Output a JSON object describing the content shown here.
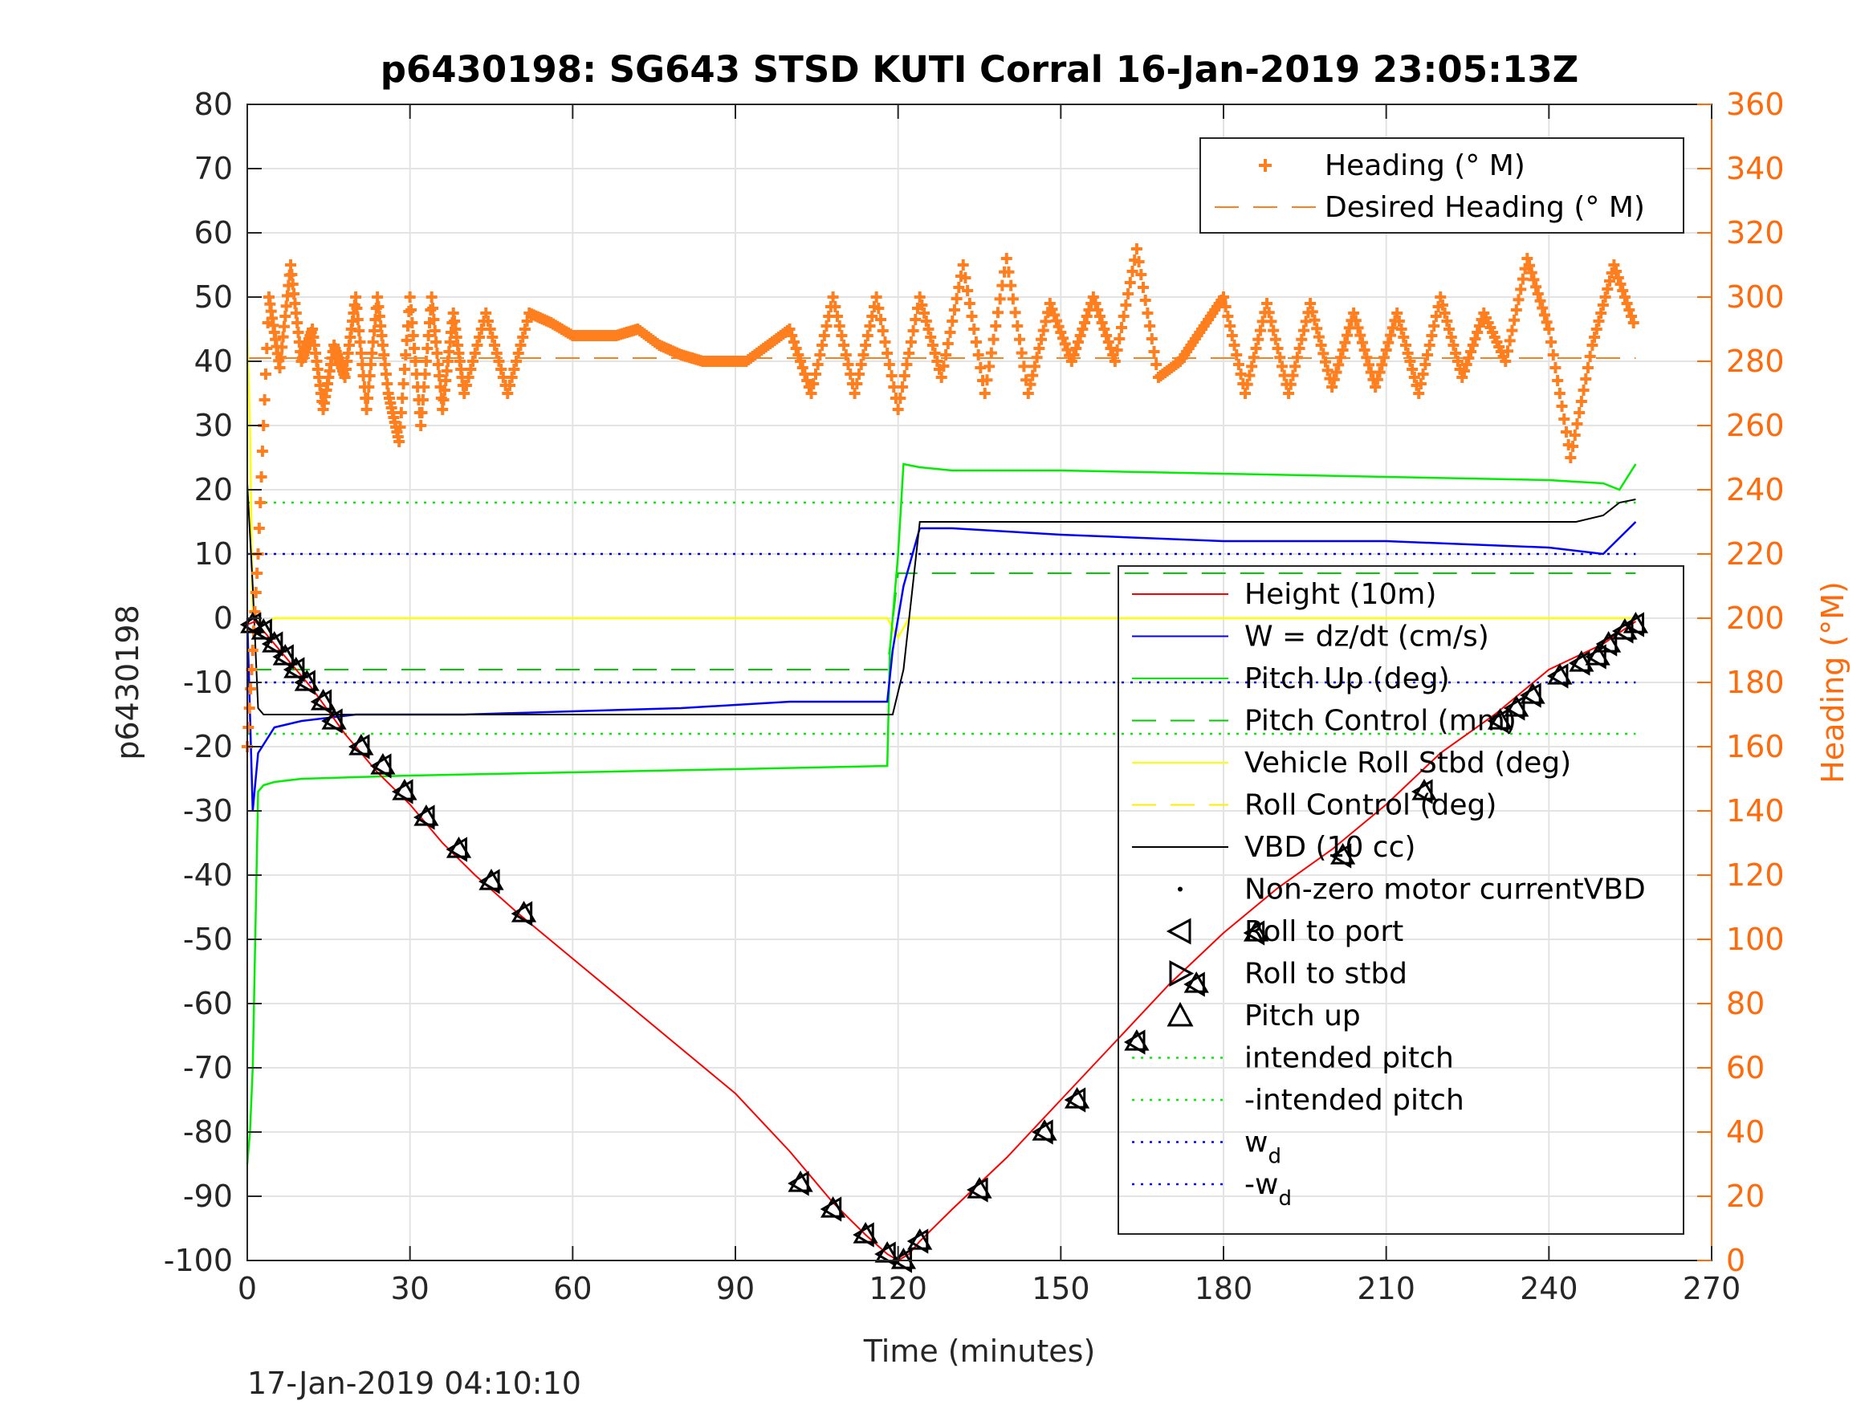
{
  "chart_data": {
    "type": "line",
    "title": "p6430198: SG643 STSD KUTI Corral 16-Jan-2019 23:05:13Z",
    "xlabel": "Time (minutes)",
    "ylabel": "p6430198",
    "y2label": "Heading (°M)",
    "footer": "17-Jan-2019 04:10:10",
    "xlim": [
      0,
      270
    ],
    "ylim": [
      -100,
      80
    ],
    "y2lim": [
      0,
      360
    ],
    "xticks": [
      0,
      30,
      60,
      90,
      120,
      150,
      180,
      210,
      240,
      270
    ],
    "yticks": [
      80,
      70,
      60,
      50,
      40,
      30,
      20,
      10,
      0,
      -10,
      -20,
      -30,
      -40,
      -50,
      -60,
      -70,
      -80,
      -90,
      -100
    ],
    "y2ticks": [
      360,
      340,
      320,
      300,
      280,
      260,
      240,
      220,
      200,
      180,
      160,
      140,
      120,
      100,
      80,
      60,
      40,
      20,
      0
    ],
    "grid": true,
    "legend_heading": {
      "placement": "top-right",
      "entries": [
        "Heading (° M)",
        "Desired Heading (° M)"
      ]
    },
    "legend_main": {
      "placement": "right",
      "entries": [
        "Height (10m)",
        "W = dz/dt (cm/s)",
        "Pitch Up (deg)",
        "Pitch Control (mm)",
        "Vehicle Roll Stbd (deg)",
        "Roll Control (deg)",
        "VBD (10 cc)",
        "Non-zero motor currentVBD",
        "Roll to port",
        "Roll to stbd",
        "Pitch up",
        "intended pitch",
        "-intended pitch",
        "w",
        "-w"
      ],
      "subscript": "d"
    },
    "colors": {
      "height": "#ff0000",
      "w": "#0000ff",
      "pitch": "#00ee00",
      "pitch_control": "#00cc00",
      "roll": "#ffff00",
      "roll_control": "#ffee00",
      "vbd": "#000000",
      "heading": "#ff7f1e",
      "axis_right": "#ff6a0a"
    },
    "series": [
      {
        "name": "Height (10m)",
        "x": [
          0,
          1.5,
          6,
          12,
          18,
          24,
          30,
          36,
          42,
          50,
          60,
          70,
          80,
          90,
          100,
          108,
          114,
          118,
          120,
          122,
          124,
          130,
          140,
          150,
          160,
          170,
          180,
          190,
          200,
          210,
          220,
          230,
          240,
          250,
          256
        ],
        "y": [
          -1,
          -0.5,
          -5,
          -11,
          -18,
          -24,
          -29,
          -35,
          -40,
          -46,
          -53,
          -60,
          -67,
          -74,
          -83,
          -91,
          -96,
          -99,
          -100,
          -99,
          -97,
          -92,
          -84,
          -75,
          -66,
          -57,
          -49,
          -42,
          -36,
          -29,
          -21,
          -15,
          -8,
          -4,
          -0.5
        ]
      },
      {
        "name": "VBD (10 cc)",
        "x": [
          0,
          1,
          2,
          3,
          119,
          121,
          124,
          130,
          150,
          180,
          210,
          245,
          250,
          253,
          256
        ],
        "y": [
          21,
          5,
          -14,
          -15,
          -15,
          -8,
          15,
          15,
          15,
          15,
          15,
          15,
          16,
          18,
          18.5
        ]
      },
      {
        "name": "W = dz/dt (cm/s)",
        "x": [
          0,
          1,
          2,
          5,
          10,
          20,
          40,
          60,
          80,
          100,
          110,
          118,
          119,
          121,
          124,
          130,
          150,
          180,
          210,
          240,
          250,
          256
        ],
        "y": [
          0,
          -30,
          -21,
          -17,
          -16,
          -15,
          -15,
          -14.5,
          -14,
          -13,
          -13,
          -13,
          -5,
          5,
          14,
          14,
          13,
          12,
          12,
          11,
          10,
          15
        ]
      },
      {
        "name": "Pitch Up (deg)",
        "x": [
          0,
          0.5,
          1,
          2,
          3,
          5,
          10,
          30,
          60,
          90,
          118,
          118.5,
          120,
          121,
          124,
          130,
          150,
          180,
          210,
          240,
          250,
          253,
          256
        ],
        "y": [
          -85,
          -80,
          -70,
          -27,
          -26,
          -25.5,
          -25,
          -24.5,
          -24,
          -23.5,
          -23,
          -5,
          10,
          24,
          23.5,
          23,
          23,
          22.5,
          22,
          21.5,
          21,
          20,
          24
        ]
      },
      {
        "name": "Vehicle Roll Stbd (deg)",
        "x": [
          0,
          0.5,
          1,
          3,
          5,
          10,
          20,
          40,
          60,
          80,
          100,
          118,
          120,
          122,
          130,
          150,
          180,
          210,
          240,
          256
        ],
        "y": [
          45,
          30,
          0,
          -1,
          0,
          0,
          0,
          0,
          0,
          0,
          0,
          0,
          -3,
          0,
          0,
          0,
          0,
          0,
          0,
          0
        ]
      },
      {
        "name": "Heading (° M)",
        "axis": "right",
        "x": [
          0,
          2,
          4,
          6,
          8,
          10,
          12,
          14,
          16,
          18,
          20,
          22,
          24,
          26,
          28,
          30,
          32,
          34,
          36,
          38,
          40,
          44,
          48,
          52,
          56,
          60,
          64,
          68,
          72,
          76,
          80,
          84,
          88,
          92,
          96,
          100,
          104,
          108,
          112,
          116,
          120,
          124,
          128,
          132,
          136,
          140,
          144,
          148,
          152,
          156,
          160,
          164,
          168,
          172,
          176,
          180,
          184,
          188,
          192,
          196,
          200,
          204,
          208,
          212,
          216,
          220,
          224,
          228,
          232,
          236,
          240,
          244,
          248,
          252,
          256
        ],
        "y": [
          160,
          220,
          300,
          278,
          310,
          280,
          290,
          265,
          285,
          275,
          300,
          265,
          300,
          270,
          255,
          300,
          260,
          300,
          265,
          295,
          270,
          295,
          270,
          295,
          292,
          288,
          288,
          288,
          290,
          285,
          282,
          280,
          280,
          280,
          285,
          290,
          270,
          300,
          270,
          300,
          265,
          300,
          275,
          310,
          270,
          312,
          270,
          298,
          280,
          300,
          280,
          315,
          275,
          280,
          290,
          300,
          270,
          298,
          270,
          298,
          272,
          295,
          272,
          295,
          270,
          300,
          275,
          295,
          280,
          312,
          290,
          250,
          285,
          310,
          290
        ]
      },
      {
        "name": "Desired Heading (° M)",
        "axis": "right",
        "x": [
          0,
          256
        ],
        "y": [
          281,
          281
        ]
      },
      {
        "name": "intended pitch",
        "x": [
          0,
          256
        ],
        "y": [
          18,
          18
        ]
      },
      {
        "name": "-intended pitch",
        "x": [
          0,
          256
        ],
        "y": [
          -18,
          -18
        ]
      },
      {
        "name": "w",
        "x": [
          0,
          256
        ],
        "y": [
          10,
          10
        ]
      },
      {
        "name": "-w",
        "x": [
          0,
          256
        ],
        "y": [
          -10,
          -10
        ]
      },
      {
        "name": "Pitch Control (mm)",
        "x": [
          0,
          118,
          120,
          256
        ],
        "y": [
          -8,
          -8,
          7,
          7
        ]
      },
      {
        "name": "Roll to port",
        "marker": "left-triangle",
        "x": [
          1,
          3,
          5,
          7,
          9,
          11,
          14,
          16,
          21,
          25,
          29,
          33,
          39,
          45,
          51,
          102,
          108,
          114,
          118,
          121,
          124,
          135,
          147,
          153,
          164,
          175,
          186,
          202,
          217,
          231,
          234,
          237,
          242,
          246,
          249,
          251,
          254,
          256
        ],
        "y": [
          -1,
          -2,
          -4,
          -6,
          -8,
          -10,
          -13,
          -16,
          -20,
          -23,
          -27,
          -31,
          -36,
          -41,
          -46,
          -88,
          -92,
          -96,
          -99,
          -100,
          -97,
          -89,
          -80,
          -75,
          -66,
          -57,
          -49,
          -37,
          -27,
          -16,
          -14,
          -12,
          -9,
          -7,
          -6,
          -4,
          -2,
          -1
        ]
      },
      {
        "name": "Pitch up",
        "marker": "up-triangle",
        "x": [
          1,
          3,
          5,
          7,
          9,
          11,
          14,
          16,
          21,
          25,
          29,
          33,
          39,
          45,
          51,
          102,
          108,
          114,
          118,
          121,
          124,
          135,
          147,
          153,
          164,
          175,
          186,
          202,
          217,
          231,
          234,
          237,
          242,
          246,
          249,
          251,
          254,
          256
        ],
        "y": [
          -1,
          -2,
          -4,
          -6,
          -8,
          -10,
          -13,
          -16,
          -20,
          -23,
          -27,
          -31,
          -36,
          -41,
          -46,
          -88,
          -92,
          -96,
          -99,
          -100,
          -97,
          -89,
          -80,
          -75,
          -66,
          -57,
          -49,
          -37,
          -27,
          -16,
          -14,
          -12,
          -9,
          -7,
          -6,
          -4,
          -2,
          -1
        ]
      }
    ]
  }
}
